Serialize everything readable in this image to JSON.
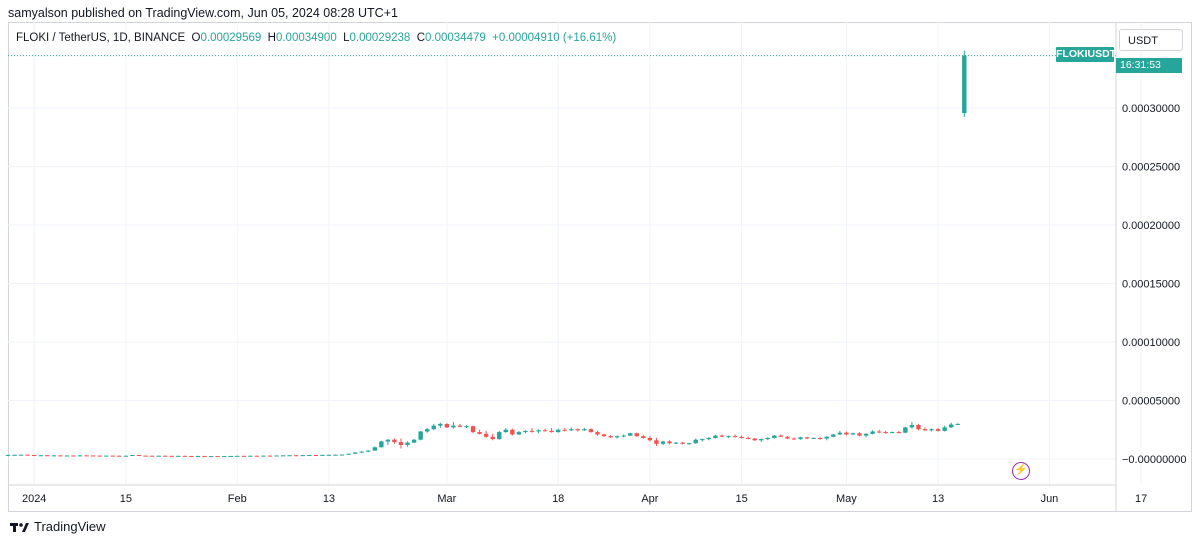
{
  "header": {
    "published_text": "samyalson published on TradingView.com, Jun 05, 2024 08:28 UTC+1"
  },
  "legend": {
    "symbol": "FLOKI / TetherUS, 1D, BINANCE",
    "open_label": "O",
    "open": "0.00029569",
    "high_label": "H",
    "high": "0.00034900",
    "low_label": "L",
    "low": "0.00029238",
    "close_label": "C",
    "close": "0.00034479",
    "change": "+0.00004910 (+16.61%)"
  },
  "price_axis": {
    "currency": "USDT",
    "ticks": [
      "0.00030000",
      "0.00025000",
      "0.00020000",
      "0.00015000",
      "0.00010000",
      "0.00005000",
      "−0.00000000"
    ]
  },
  "price_tag": {
    "symbol": "FLOKIUSDT",
    "countdown": "16:31:53"
  },
  "time_axis": {
    "ticks": [
      "2024",
      "15",
      "Feb",
      "13",
      "Mar",
      "18",
      "Apr",
      "15",
      "May",
      "13",
      "Jun",
      "17"
    ]
  },
  "footer": {
    "brand": "TradingView",
    "logo": "tradingview-logo-icon"
  },
  "colors": {
    "up": "#26a69a",
    "down": "#ef5350",
    "grid": "#f0f3fa",
    "axis_text": "#131722"
  },
  "chart_data": {
    "type": "candlestick",
    "title": "FLOKI / TetherUS, 1D, BINANCE",
    "y_range": [
      -3e-05,
      0.00038
    ],
    "last_price": 0.00034479,
    "start_date": "2023-12-28",
    "ohlc": [
      [
        3.5e-06,
        3.6e-06,
        3.4e-06,
        3.5e-06
      ],
      [
        3.5e-06,
        3.7e-06,
        3.4e-06,
        3.6e-06
      ],
      [
        3.6e-06,
        3.8e-06,
        3.5e-06,
        3.7e-06
      ],
      [
        3.7e-06,
        3.8e-06,
        3.3e-06,
        3.4e-06
      ],
      [
        3.4e-06,
        3.5e-06,
        2.6e-06,
        3e-06
      ],
      [
        3e-06,
        3.3e-06,
        2.8e-06,
        3.2e-06
      ],
      [
        3.2e-06,
        3.3e-06,
        2.9e-06,
        3e-06
      ],
      [
        3e-06,
        3.2e-06,
        2.8e-06,
        3.1e-06
      ],
      [
        3.1e-06,
        3.2e-06,
        2.7e-06,
        2.8e-06
      ],
      [
        2.8e-06,
        3.1e-06,
        2.7e-06,
        3e-06
      ],
      [
        3e-06,
        3.1e-06,
        2.8e-06,
        2.9e-06
      ],
      [
        2.9e-06,
        3.2e-06,
        2.8e-06,
        3.1e-06
      ],
      [
        3.1e-06,
        3.2e-06,
        2.9e-06,
        3e-06
      ],
      [
        3e-06,
        3.1e-06,
        2.8e-06,
        2.9e-06
      ],
      [
        2.9e-06,
        3e-06,
        2.7e-06,
        2.8e-06
      ],
      [
        2.8e-06,
        3e-06,
        2.7e-06,
        2.9e-06
      ],
      [
        2.9e-06,
        3e-06,
        2.7e-06,
        2.8e-06
      ],
      [
        2.8e-06,
        2.9e-06,
        2.6e-06,
        2.7e-06
      ],
      [
        2.7e-06,
        2.9e-06,
        2.6e-06,
        2.8e-06
      ],
      [
        2.8e-06,
        3.6e-06,
        2.7e-06,
        3.4e-06
      ],
      [
        3.4e-06,
        3.5e-06,
        2.8e-06,
        2.9e-06
      ],
      [
        2.9e-06,
        3e-06,
        2.7e-06,
        2.8e-06
      ],
      [
        2.8e-06,
        2.9e-06,
        2.6e-06,
        2.7e-06
      ],
      [
        2.7e-06,
        2.9e-06,
        2.6e-06,
        2.8e-06
      ],
      [
        2.8e-06,
        2.9e-06,
        2.6e-06,
        2.7e-06
      ],
      [
        2.7e-06,
        2.8e-06,
        2.5e-06,
        2.6e-06
      ],
      [
        2.6e-06,
        2.8e-06,
        2.5e-06,
        2.7e-06
      ],
      [
        2.7e-06,
        2.8e-06,
        2.5e-06,
        2.6e-06
      ],
      [
        2.6e-06,
        2.7e-06,
        2.4e-06,
        2.5e-06
      ],
      [
        2.5e-06,
        2.7e-06,
        2.4e-06,
        2.6e-06
      ],
      [
        2.6e-06,
        2.7e-06,
        2.4e-06,
        2.5e-06
      ],
      [
        2.5e-06,
        2.6e-06,
        2.4e-06,
        2.5e-06
      ],
      [
        2.5e-06,
        2.6e-06,
        2.4e-06,
        2.4e-06
      ],
      [
        2.4e-06,
        2.6e-06,
        2.3e-06,
        2.5e-06
      ],
      [
        2.5e-06,
        2.7e-06,
        2.4e-06,
        2.6e-06
      ],
      [
        2.6e-06,
        2.8e-06,
        2.5e-06,
        2.7e-06
      ],
      [
        2.7e-06,
        2.8e-06,
        2.5e-06,
        2.6e-06
      ],
      [
        2.6e-06,
        2.9e-06,
        2.5e-06,
        2.8e-06
      ],
      [
        2.8e-06,
        2.9e-06,
        2.6e-06,
        2.7e-06
      ],
      [
        2.7e-06,
        3e-06,
        2.6e-06,
        2.9e-06
      ],
      [
        2.9e-06,
        3.1e-06,
        2.7e-06,
        2.8e-06
      ],
      [
        2.8e-06,
        3.1e-06,
        2.7e-06,
        3e-06
      ],
      [
        3e-06,
        3.2e-06,
        2.9e-06,
        3.1e-06
      ],
      [
        3.1e-06,
        3.3e-06,
        3e-06,
        3.2e-06
      ],
      [
        3.2e-06,
        3.3e-06,
        3e-06,
        3.1e-06
      ],
      [
        3.1e-06,
        3.4e-06,
        3e-06,
        3.3e-06
      ],
      [
        3.3e-06,
        3.5e-06,
        3.2e-06,
        3.4e-06
      ],
      [
        3.4e-06,
        3.6e-06,
        3.2e-06,
        3.3e-06
      ],
      [
        3.3e-06,
        3.6e-06,
        3.2e-06,
        3.5e-06
      ],
      [
        3.5e-06,
        3.7e-06,
        3.3e-06,
        3.6e-06
      ],
      [
        3.6e-06,
        3.8e-06,
        3.4e-06,
        3.7e-06
      ],
      [
        3.7e-06,
        3.9e-06,
        3.5e-06,
        3.8e-06
      ],
      [
        3.8e-06,
        4.6e-06,
        3.7e-06,
        4.5e-06
      ],
      [
        4.5e-06,
        5.8e-06,
        4.4e-06,
        5.6e-06
      ],
      [
        5.6e-06,
        6.6e-06,
        5.2e-06,
        6.3e-06
      ],
      [
        6.3e-06,
        7.5e-06,
        5.8e-06,
        7.2e-06
      ],
      [
        7.2e-06,
        1.08e-05,
        7e-06,
        1e-05
      ],
      [
        1e-05,
        1.55e-05,
        9.8e-06,
        1.5e-05
      ],
      [
        1.5e-05,
        1.7e-05,
        1.2e-05,
        1.65e-05
      ],
      [
        1.65e-05,
        1.75e-05,
        1.3e-05,
        1.45e-05
      ],
      [
        1.45e-05,
        1.75e-05,
        9e-06,
        1.2e-05
      ],
      [
        1.2e-05,
        1.5e-05,
        1.05e-05,
        1.4e-05
      ],
      [
        1.4e-05,
        1.7e-05,
        1.35e-05,
        1.65e-05
      ],
      [
        1.65e-05,
        2.4e-05,
        1.6e-05,
        2.35e-05
      ],
      [
        2.35e-05,
        2.65e-05,
        2.25e-05,
        2.55e-05
      ],
      [
        2.55e-05,
        3e-05,
        2.45e-05,
        2.85e-05
      ],
      [
        2.85e-05,
        3.1e-05,
        2.65e-05,
        3e-05
      ],
      [
        3e-05,
        3.05e-05,
        2.65e-05,
        2.7e-05
      ],
      [
        2.7e-05,
        3.15e-05,
        2.6e-05,
        2.85e-05
      ],
      [
        2.85e-05,
        3e-05,
        2.7e-05,
        2.75e-05
      ],
      [
        2.75e-05,
        2.9e-05,
        2.65e-05,
        2.8e-05
      ],
      [
        2.8e-05,
        2.85e-05,
        2.2e-05,
        2.3e-05
      ],
      [
        2.3e-05,
        2.5e-05,
        2.1e-05,
        2.15e-05
      ],
      [
        2.15e-05,
        2.4e-05,
        1.8e-05,
        1.9e-05
      ],
      [
        1.9e-05,
        2.15e-05,
        1.6e-05,
        1.7e-05
      ],
      [
        1.7e-05,
        2.4e-05,
        1.65e-05,
        2.3e-05
      ],
      [
        2.3e-05,
        2.65e-05,
        2.25e-05,
        2.5e-05
      ],
      [
        2.5e-05,
        2.6e-05,
        2e-05,
        2.1e-05
      ],
      [
        2.1e-05,
        2.4e-05,
        2.05e-05,
        2.3e-05
      ],
      [
        2.3e-05,
        2.45e-05,
        2.2e-05,
        2.4e-05
      ],
      [
        2.4e-05,
        2.65e-05,
        2.25e-05,
        2.35e-05
      ],
      [
        2.35e-05,
        2.55e-05,
        2.2e-05,
        2.45e-05
      ],
      [
        2.45e-05,
        2.6e-05,
        2.35e-05,
        2.4e-05
      ],
      [
        2.4e-05,
        2.65e-05,
        2.25e-05,
        2.3e-05
      ],
      [
        2.3e-05,
        2.6e-05,
        2.25e-05,
        2.5e-05
      ],
      [
        2.5e-05,
        2.65e-05,
        2.35e-05,
        2.45e-05
      ],
      [
        2.45e-05,
        2.7e-05,
        2.4e-05,
        2.55e-05
      ],
      [
        2.55e-05,
        2.6e-05,
        2.35e-05,
        2.45e-05
      ],
      [
        2.45e-05,
        2.65e-05,
        2.4e-05,
        2.55e-05
      ],
      [
        2.55e-05,
        2.62e-05,
        2.25e-05,
        2.3e-05
      ],
      [
        2.3e-05,
        2.4e-05,
        2e-05,
        2.1e-05
      ],
      [
        2.1e-05,
        2.15e-05,
        1.9e-05,
        1.95e-05
      ],
      [
        1.95e-05,
        2.05e-05,
        1.8e-05,
        1.85e-05
      ],
      [
        1.85e-05,
        2e-05,
        1.75e-05,
        1.95e-05
      ],
      [
        1.95e-05,
        2.1e-05,
        1.85e-05,
        2e-05
      ],
      [
        2e-05,
        2.25e-05,
        1.95e-05,
        2.2e-05
      ],
      [
        2.2e-05,
        2.25e-05,
        1.9e-05,
        1.95e-05
      ],
      [
        1.95e-05,
        2.05e-05,
        1.75e-05,
        1.8e-05
      ],
      [
        1.8e-05,
        1.95e-05,
        1.5e-05,
        1.6e-05
      ],
      [
        1.6e-05,
        1.8e-05,
        1.1e-05,
        1.3e-05
      ],
      [
        1.3e-05,
        1.55e-05,
        1.2e-05,
        1.5e-05
      ],
      [
        1.5e-05,
        1.6e-05,
        1.25e-05,
        1.35e-05
      ],
      [
        1.35e-05,
        1.45e-05,
        1.28e-05,
        1.4e-05
      ],
      [
        1.4e-05,
        1.45e-05,
        1.25e-05,
        1.3e-05
      ],
      [
        1.3e-05,
        1.38e-05,
        1.22e-05,
        1.35e-05
      ],
      [
        1.35e-05,
        1.75e-05,
        1.3e-05,
        1.65e-05
      ],
      [
        1.65e-05,
        1.75e-05,
        1.5e-05,
        1.7e-05
      ],
      [
        1.7e-05,
        1.85e-05,
        1.6e-05,
        1.8e-05
      ],
      [
        1.8e-05,
        2.05e-05,
        1.75e-05,
        2e-05
      ],
      [
        2e-05,
        2.1e-05,
        1.85e-05,
        1.9e-05
      ],
      [
        1.9e-05,
        2e-05,
        1.8e-05,
        1.95e-05
      ],
      [
        1.95e-05,
        2.1e-05,
        1.85e-05,
        1.9e-05
      ],
      [
        1.9e-05,
        2e-05,
        1.75e-05,
        1.8e-05
      ],
      [
        1.8e-05,
        1.9e-05,
        1.7e-05,
        1.75e-05
      ],
      [
        1.75e-05,
        1.8e-05,
        1.55e-05,
        1.6e-05
      ],
      [
        1.6e-05,
        1.75e-05,
        1.45e-05,
        1.7e-05
      ],
      [
        1.7e-05,
        1.85e-05,
        1.6e-05,
        1.8e-05
      ],
      [
        1.8e-05,
        2.05e-05,
        1.75e-05,
        2e-05
      ],
      [
        2e-05,
        2.1e-05,
        1.85e-05,
        1.9e-05
      ],
      [
        1.9e-05,
        1.95e-05,
        1.7e-05,
        1.75e-05
      ],
      [
        1.75e-05,
        1.85e-05,
        1.65e-05,
        1.7e-05
      ],
      [
        1.7e-05,
        1.9e-05,
        1.65e-05,
        1.85e-05
      ],
      [
        1.85e-05,
        1.9e-05,
        1.7e-05,
        1.75e-05
      ],
      [
        1.75e-05,
        1.85e-05,
        1.7e-05,
        1.8e-05
      ],
      [
        1.8e-05,
        1.85e-05,
        1.65e-05,
        1.75e-05
      ],
      [
        1.75e-05,
        1.95e-05,
        1.6e-05,
        1.9e-05
      ],
      [
        1.9e-05,
        2.15e-05,
        1.85e-05,
        2.1e-05
      ],
      [
        2.1e-05,
        2.4e-05,
        2.05e-05,
        2.25e-05
      ],
      [
        2.25e-05,
        2.35e-05,
        2e-05,
        2.1e-05
      ],
      [
        2.1e-05,
        2.25e-05,
        2.05e-05,
        2.2e-05
      ],
      [
        2.2e-05,
        2.3e-05,
        1.95e-05,
        2e-05
      ],
      [
        2e-05,
        2.2e-05,
        1.85e-05,
        2.15e-05
      ],
      [
        2.15e-05,
        2.45e-05,
        2.1e-05,
        2.35e-05
      ],
      [
        2.35e-05,
        2.5e-05,
        2.2e-05,
        2.3e-05
      ],
      [
        2.3e-05,
        2.4e-05,
        2.15e-05,
        2.25e-05
      ],
      [
        2.25e-05,
        2.35e-05,
        2.2e-05,
        2.3e-05
      ],
      [
        2.3e-05,
        2.4e-05,
        2.2e-05,
        2.25e-05
      ],
      [
        2.25e-05,
        2.75e-05,
        2.2e-05,
        2.7e-05
      ],
      [
        2.7e-05,
        3.15e-05,
        2.6e-05,
        2.9e-05
      ],
      [
        2.9e-05,
        3e-05,
        2.45e-05,
        2.55e-05
      ],
      [
        2.55e-05,
        2.7e-05,
        2.4e-05,
        2.45e-05
      ],
      [
        2.45e-05,
        2.6e-05,
        2.35e-05,
        2.55e-05
      ],
      [
        2.55e-05,
        2.65e-05,
        2.35e-05,
        2.4e-05
      ],
      [
        2.4e-05,
        2.85e-05,
        2.35e-05,
        2.7e-05
      ],
      [
        2.7e-05,
        3.1e-05,
        2.65e-05,
        2.95e-05
      ],
      [
        2.95e-05,
        3.05e-05,
        2.9e-05,
        3e-05
      ],
      [
        0.00029569,
        0.000349,
        0.00029238,
        0.00034479
      ]
    ]
  }
}
